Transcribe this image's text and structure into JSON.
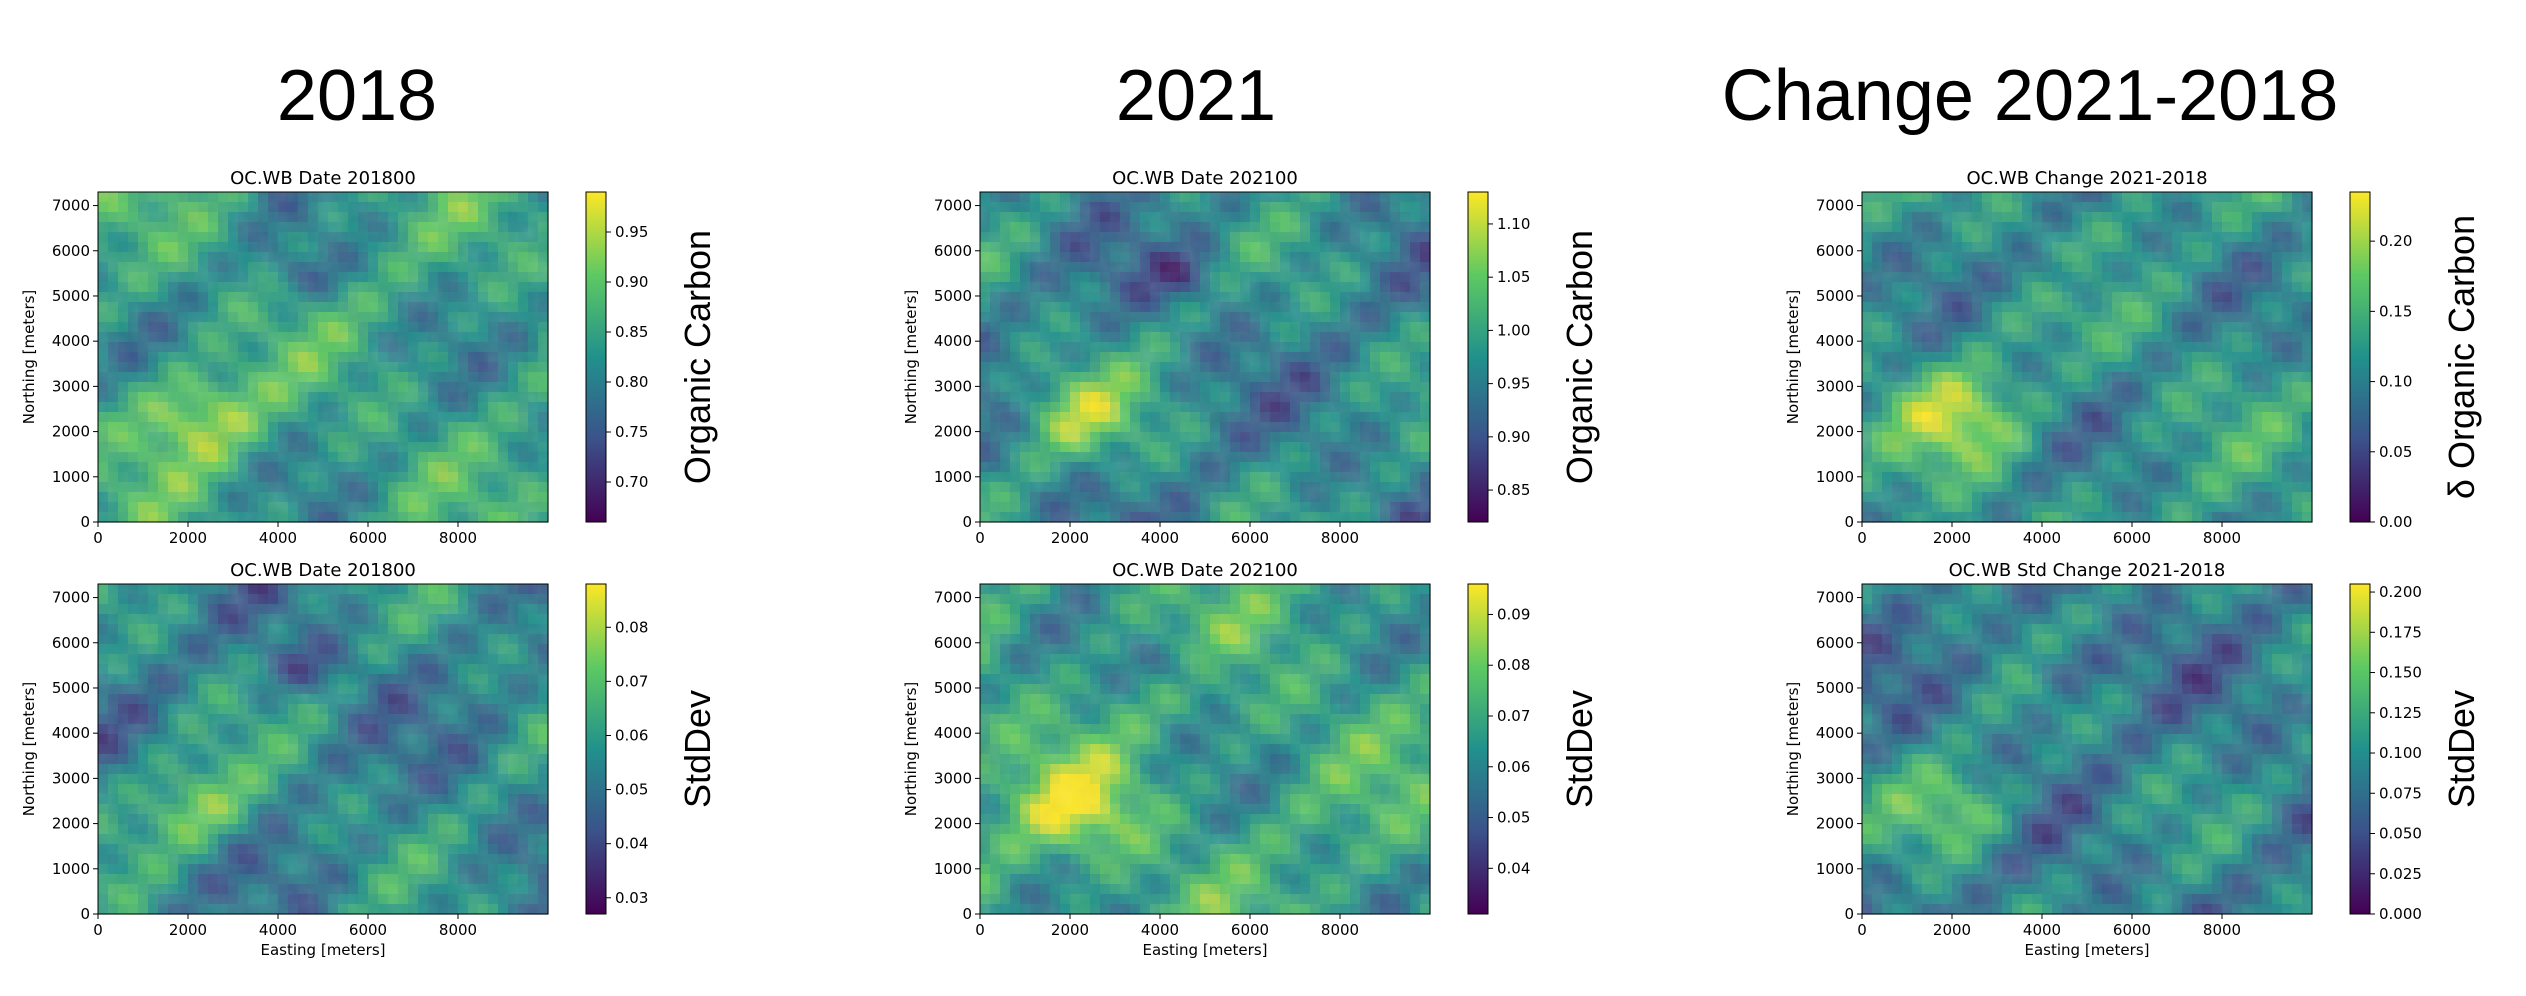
{
  "column_headers": [
    "2018",
    "2021",
    "Change 2021-2018"
  ],
  "colormap": [
    "#440154",
    "#3b528b",
    "#21918c",
    "#5ec962",
    "#fde725"
  ],
  "chart_data": [
    {
      "type": "heatmap",
      "title": "OC.WB Date 201800",
      "xlabel": "",
      "ylabel": "Northing [meters]",
      "xlim": [
        0,
        10000
      ],
      "ylim": [
        0,
        7300
      ],
      "x_ticks": [
        0,
        2000,
        4000,
        6000,
        8000
      ],
      "y_ticks": [
        0,
        1000,
        2000,
        3000,
        4000,
        5000,
        6000,
        7000
      ],
      "colorbar": {
        "label": "Organic Carbon",
        "min": 0.66,
        "max": 0.99,
        "ticks": [
          "0.70",
          "0.75",
          "0.80",
          "0.85",
          "0.90",
          "0.95"
        ],
        "tick_values": [
          0.7,
          0.75,
          0.8,
          0.85,
          0.9,
          0.95
        ]
      },
      "mean_level": 0.55
    },
    {
      "type": "heatmap",
      "title": "OC.WB Date 202100",
      "xlabel": "",
      "ylabel": "Northing [meters]",
      "xlim": [
        0,
        10000
      ],
      "ylim": [
        0,
        7300
      ],
      "x_ticks": [
        0,
        2000,
        4000,
        6000,
        8000
      ],
      "y_ticks": [
        0,
        1000,
        2000,
        3000,
        4000,
        5000,
        6000,
        7000
      ],
      "colorbar": {
        "label": "Organic Carbon",
        "min": 0.82,
        "max": 1.13,
        "ticks": [
          "0.85",
          "0.90",
          "0.95",
          "1.00",
          "1.05",
          "1.10"
        ],
        "tick_values": [
          0.85,
          0.9,
          0.95,
          1.0,
          1.05,
          1.1
        ]
      },
      "mean_level": 0.45
    },
    {
      "type": "heatmap",
      "title": "OC.WB Change 2021-2018",
      "xlabel": "",
      "ylabel": "Northing [meters]",
      "xlim": [
        0,
        10000
      ],
      "ylim": [
        0,
        7300
      ],
      "x_ticks": [
        0,
        2000,
        4000,
        6000,
        8000
      ],
      "y_ticks": [
        0,
        1000,
        2000,
        3000,
        4000,
        5000,
        6000,
        7000
      ],
      "colorbar": {
        "label": "δ Organic Carbon",
        "min": 0.0,
        "max": 0.235,
        "ticks": [
          "0.00",
          "0.05",
          "0.10",
          "0.15",
          "0.20"
        ],
        "tick_values": [
          0.0,
          0.05,
          0.1,
          0.15,
          0.2
        ]
      },
      "mean_level": 0.5
    },
    {
      "type": "heatmap",
      "title": "OC.WB Date 201800",
      "xlabel": "Easting [meters]",
      "ylabel": "Northing [meters]",
      "xlim": [
        0,
        10000
      ],
      "ylim": [
        0,
        7300
      ],
      "x_ticks": [
        0,
        2000,
        4000,
        6000,
        8000
      ],
      "y_ticks": [
        0,
        1000,
        2000,
        3000,
        4000,
        5000,
        6000,
        7000
      ],
      "colorbar": {
        "label": "StdDev",
        "min": 0.027,
        "max": 0.088,
        "ticks": [
          "0.03",
          "0.04",
          "0.05",
          "0.06",
          "0.07",
          "0.08"
        ],
        "tick_values": [
          0.03,
          0.04,
          0.05,
          0.06,
          0.07,
          0.08
        ]
      },
      "mean_level": 0.45
    },
    {
      "type": "heatmap",
      "title": "OC.WB Date 202100",
      "xlabel": "Easting [meters]",
      "ylabel": "Northing [meters]",
      "xlim": [
        0,
        10000
      ],
      "ylim": [
        0,
        7300
      ],
      "x_ticks": [
        0,
        2000,
        4000,
        6000,
        8000
      ],
      "y_ticks": [
        0,
        1000,
        2000,
        3000,
        4000,
        5000,
        6000,
        7000
      ],
      "colorbar": {
        "label": "StdDev",
        "min": 0.031,
        "max": 0.096,
        "ticks": [
          "0.04",
          "0.05",
          "0.06",
          "0.07",
          "0.08",
          "0.09"
        ],
        "tick_values": [
          0.04,
          0.05,
          0.06,
          0.07,
          0.08,
          0.09
        ]
      },
      "mean_level": 0.58
    },
    {
      "type": "heatmap",
      "title": "OC.WB Std Change 2021-2018",
      "xlabel": "Easting [meters]",
      "ylabel": "Northing [meters]",
      "xlim": [
        0,
        10000
      ],
      "ylim": [
        0,
        7300
      ],
      "x_ticks": [
        0,
        2000,
        4000,
        6000,
        8000
      ],
      "y_ticks": [
        0,
        1000,
        2000,
        3000,
        4000,
        5000,
        6000,
        7000
      ],
      "colorbar": {
        "label": "StdDev",
        "min": 0.0,
        "max": 0.205,
        "ticks": [
          "0.000",
          "0.025",
          "0.050",
          "0.075",
          "0.100",
          "0.125",
          "0.150",
          "0.175",
          "0.200"
        ],
        "tick_values": [
          0.0,
          0.025,
          0.05,
          0.075,
          0.1,
          0.125,
          0.15,
          0.175,
          0.2
        ]
      },
      "mean_level": 0.42
    }
  ]
}
